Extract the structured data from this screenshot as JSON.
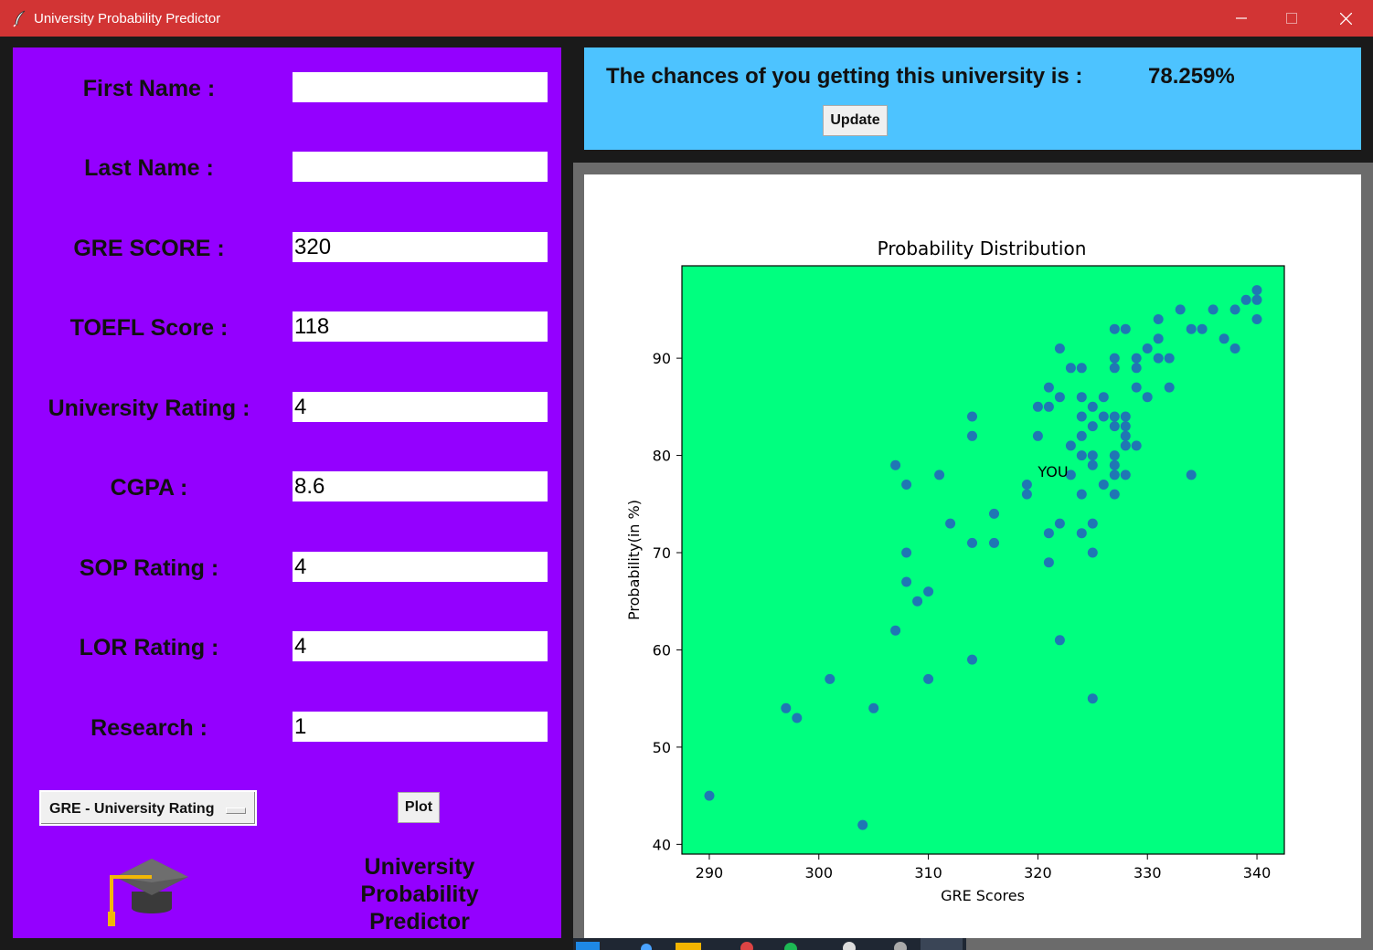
{
  "window": {
    "title": "University Probability Predictor",
    "controls": [
      "minimize",
      "maximize",
      "close"
    ]
  },
  "form": {
    "fields": [
      {
        "label": "First Name :",
        "value": ""
      },
      {
        "label": "Last Name :",
        "value": ""
      },
      {
        "label": "GRE SCORE :",
        "value": "320"
      },
      {
        "label": "TOEFL Score :",
        "value": "118"
      },
      {
        "label": "University Rating :",
        "value": "4"
      },
      {
        "label": "CGPA :",
        "value": "8.6"
      },
      {
        "label": "SOP Rating :",
        "value": "4"
      },
      {
        "label": "LOR Rating :",
        "value": "4"
      },
      {
        "label": "Research :",
        "value": "1"
      }
    ],
    "plot_selector": "GRE - University Rating",
    "plot_button": "Plot"
  },
  "branding": {
    "logo_icon": "graduation-cap-icon",
    "line1": "University",
    "line2": "Probability",
    "line3": "Predictor"
  },
  "result": {
    "text": "The chances of you getting this university is :",
    "value": "78.259%",
    "update_button": "Update"
  },
  "colors": {
    "titlebar": "#d23434",
    "form_panel": "#9400ff",
    "result_panel": "#4dc3ff",
    "plot_background": "#00ff7f",
    "points": "#1f77b4"
  },
  "chart_data": {
    "type": "scatter",
    "title": "Probability Distribution",
    "xlabel": "GRE Scores",
    "ylabel": "Probability(in %)",
    "xlim": [
      287.5,
      342.5
    ],
    "ylim": [
      39,
      99.5
    ],
    "xticks": [
      290,
      300,
      310,
      320,
      330,
      340
    ],
    "yticks": [
      40,
      50,
      60,
      70,
      80,
      90
    ],
    "grid": false,
    "annotation": {
      "text": "YOU",
      "x": 320,
      "y": 78.26
    },
    "points": [
      [
        290,
        45
      ],
      [
        297,
        54
      ],
      [
        298,
        53
      ],
      [
        301,
        57
      ],
      [
        304,
        42
      ],
      [
        305,
        54
      ],
      [
        307,
        79
      ],
      [
        307,
        62
      ],
      [
        308,
        77
      ],
      [
        308,
        70
      ],
      [
        308,
        67
      ],
      [
        309,
        65
      ],
      [
        310,
        66
      ],
      [
        310,
        57
      ],
      [
        311,
        78
      ],
      [
        312,
        73
      ],
      [
        314,
        84
      ],
      [
        314,
        82
      ],
      [
        314,
        71
      ],
      [
        314,
        59
      ],
      [
        316,
        74
      ],
      [
        316,
        71
      ],
      [
        319,
        77
      ],
      [
        319,
        76
      ],
      [
        320,
        85
      ],
      [
        320,
        82
      ],
      [
        321,
        87
      ],
      [
        321,
        85
      ],
      [
        321,
        72
      ],
      [
        321,
        69
      ],
      [
        322,
        91
      ],
      [
        322,
        86
      ],
      [
        322,
        73
      ],
      [
        322,
        61
      ],
      [
        323,
        89
      ],
      [
        323,
        81
      ],
      [
        323,
        78
      ],
      [
        324,
        89
      ],
      [
        324,
        86
      ],
      [
        324,
        84
      ],
      [
        324,
        82
      ],
      [
        324,
        80
      ],
      [
        324,
        76
      ],
      [
        324,
        72
      ],
      [
        325,
        85
      ],
      [
        325,
        83
      ],
      [
        325,
        80
      ],
      [
        325,
        79
      ],
      [
        325,
        73
      ],
      [
        325,
        70
      ],
      [
        325,
        55
      ],
      [
        326,
        86
      ],
      [
        326,
        84
      ],
      [
        326,
        77
      ],
      [
        327,
        93
      ],
      [
        327,
        90
      ],
      [
        327,
        89
      ],
      [
        327,
        84
      ],
      [
        327,
        83
      ],
      [
        327,
        80
      ],
      [
        327,
        79
      ],
      [
        327,
        78
      ],
      [
        327,
        76
      ],
      [
        328,
        93
      ],
      [
        328,
        84
      ],
      [
        328,
        83
      ],
      [
        328,
        82
      ],
      [
        328,
        81
      ],
      [
        328,
        78
      ],
      [
        329,
        90
      ],
      [
        329,
        89
      ],
      [
        329,
        87
      ],
      [
        329,
        81
      ],
      [
        330,
        91
      ],
      [
        330,
        86
      ],
      [
        331,
        94
      ],
      [
        331,
        92
      ],
      [
        331,
        90
      ],
      [
        332,
        90
      ],
      [
        332,
        87
      ],
      [
        333,
        95
      ],
      [
        334,
        93
      ],
      [
        334,
        78
      ],
      [
        335,
        93
      ],
      [
        336,
        95
      ],
      [
        337,
        92
      ],
      [
        338,
        95
      ],
      [
        338,
        91
      ],
      [
        339,
        96
      ],
      [
        340,
        97
      ],
      [
        340,
        96
      ],
      [
        340,
        94
      ]
    ]
  }
}
